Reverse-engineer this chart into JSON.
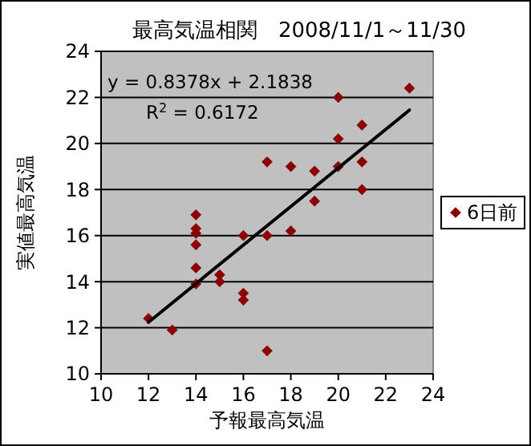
{
  "chart_data": {
    "type": "scatter",
    "title": "最高気温相関　2008/11/1～11/30",
    "xlabel": "予報最高気温",
    "ylabel": "実値最高気温",
    "annotations": [
      "y = 0.8378x + 2.1838",
      "R$^{2}$ = 0.6172"
    ],
    "xlim": [
      10,
      24
    ],
    "xticks": [
      10,
      12,
      14,
      16,
      18,
      20,
      22,
      24
    ],
    "ylim": [
      10,
      24
    ],
    "yticks": [
      10,
      12,
      14,
      16,
      18,
      20,
      22,
      24
    ],
    "grid": "y",
    "legend": "right",
    "marker": "diamond",
    "series": [
      {
        "name": "6日前",
        "color": "#8b0000",
        "x": [
          12,
          13,
          14,
          14,
          14,
          14,
          14,
          14,
          15,
          15,
          16,
          16,
          16,
          17,
          17,
          17,
          18,
          18,
          19,
          19,
          20,
          20,
          20,
          21,
          21,
          21,
          23
        ],
        "values": [
          12.4,
          11.9,
          16.9,
          16.3,
          16.1,
          15.6,
          14.6,
          13.9,
          14.3,
          14.0,
          16.0,
          13.5,
          13.2,
          19.2,
          16.0,
          11.0,
          19.0,
          16.2,
          18.8,
          17.5,
          22.0,
          20.2,
          19.0,
          20.8,
          19.2,
          18.0,
          22.4
        ]
      },
      {
        "type": "line",
        "color": "#000000",
        "x": [
          12,
          23
        ],
        "values": [
          12.24,
          21.45
        ],
        "marker": "none",
        "line_style": "solid"
      }
    ]
  }
}
